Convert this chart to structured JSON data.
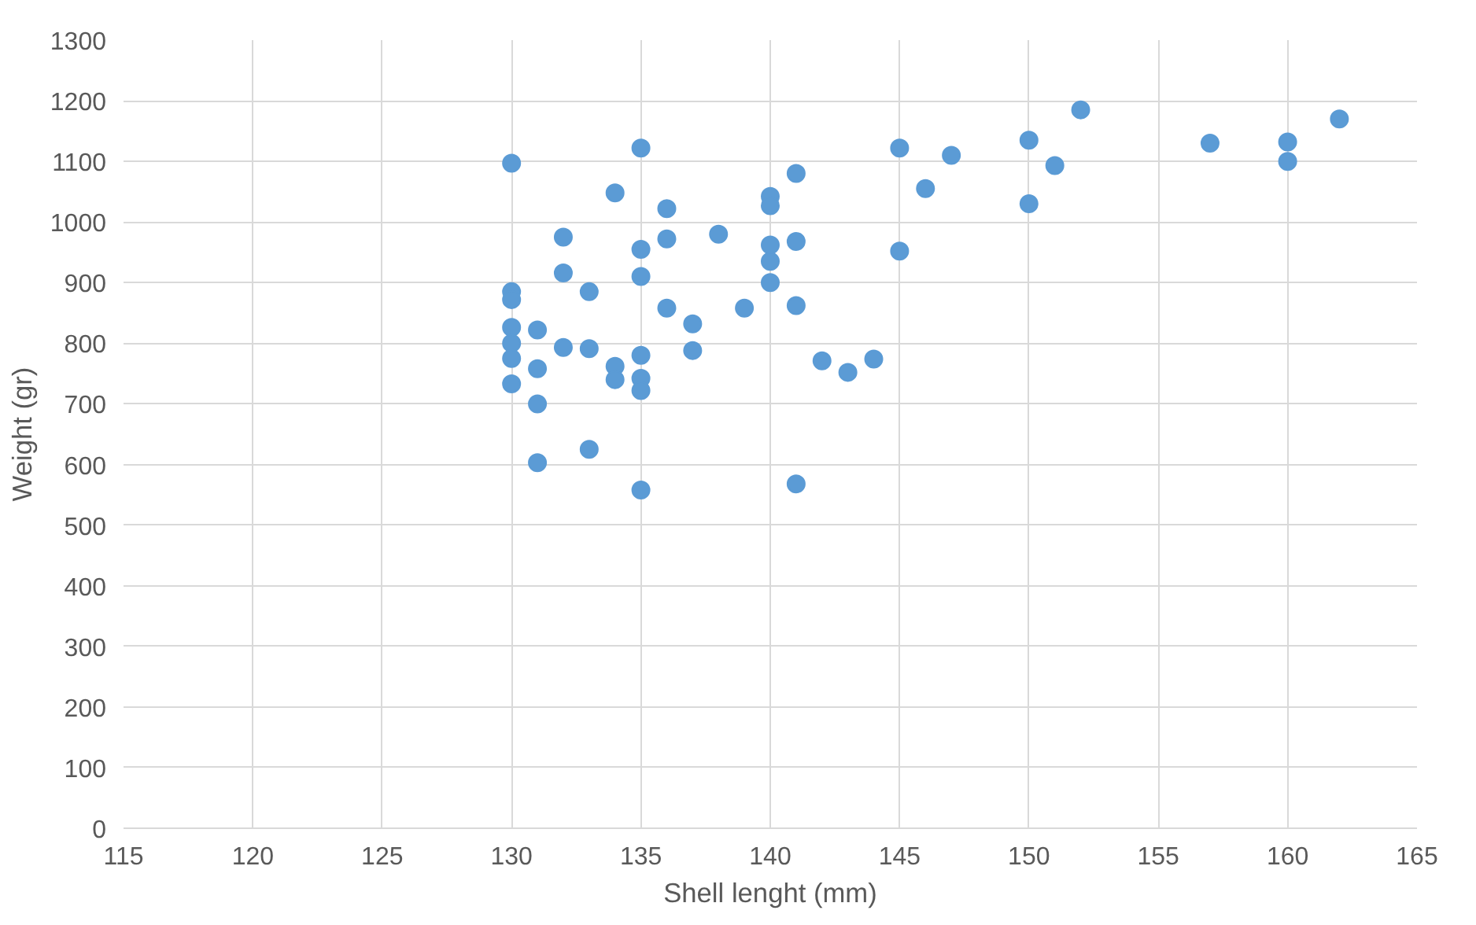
{
  "chart_data": {
    "type": "scatter",
    "xlabel": "Shell lenght (mm)",
    "ylabel": "Weight (gr)",
    "xlim": [
      115,
      165
    ],
    "xticks": [
      115,
      120,
      125,
      130,
      135,
      140,
      145,
      150,
      155,
      160,
      165
    ],
    "ylim": [
      0,
      1300
    ],
    "yticks": [
      0,
      100,
      200,
      300,
      400,
      500,
      600,
      700,
      800,
      900,
      1000,
      1100,
      1200,
      1300
    ],
    "grid": true,
    "marker": "circle",
    "series": [
      {
        "color": "#5b9bd5",
        "x": [
          130,
          135,
          134,
          136,
          132,
          135,
          136,
          138,
          140,
          140,
          141,
          140,
          140,
          141,
          140,
          132,
          135,
          133,
          130,
          130,
          136,
          137,
          139,
          141,
          130,
          131,
          130,
          132,
          133,
          130,
          134,
          134,
          135,
          135,
          135,
          137,
          130,
          131,
          131,
          131,
          133,
          135,
          141,
          142,
          143,
          144,
          145,
          145,
          146,
          147,
          150,
          150,
          151,
          152,
          157,
          160,
          160,
          162
        ],
        "values": [
          1097,
          1122,
          1048,
          1022,
          975,
          955,
          972,
          980,
          1042,
          1027,
          1080,
          962,
          935,
          968,
          900,
          916,
          910,
          885,
          885,
          872,
          858,
          832,
          858,
          862,
          826,
          822,
          800,
          793,
          791,
          775,
          762,
          740,
          780,
          742,
          722,
          788,
          733,
          758,
          700,
          603,
          625,
          558,
          568,
          771,
          752,
          774,
          1122,
          952,
          1055,
          1110,
          1135,
          1030,
          1093,
          1185,
          1130,
          1132,
          1100,
          1170
        ]
      }
    ]
  }
}
